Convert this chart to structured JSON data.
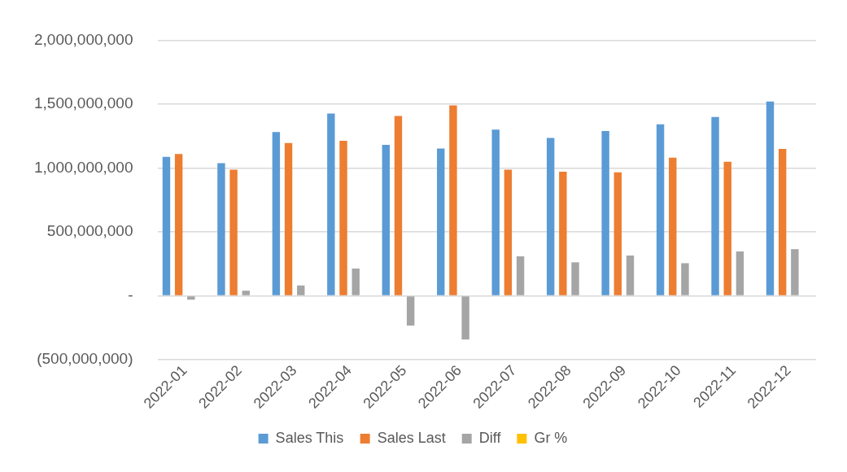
{
  "chart_data": {
    "type": "bar",
    "categories": [
      "2022-01",
      "2022-02",
      "2022-03",
      "2022-04",
      "2022-05",
      "2022-06",
      "2022-07",
      "2022-08",
      "2022-09",
      "2022-10",
      "2022-11",
      "2022-12"
    ],
    "series": [
      {
        "name": "Sales This",
        "color": "#5b9bd5",
        "values": [
          1087000000,
          1038000000,
          1282000000,
          1427000000,
          1181000000,
          1152000000,
          1300000000,
          1235000000,
          1289000000,
          1342000000,
          1400000000,
          1521000000
        ]
      },
      {
        "name": "Sales Last",
        "color": "#ed7d31",
        "values": [
          1110000000,
          987000000,
          1195000000,
          1213000000,
          1407000000,
          1490000000,
          987000000,
          971000000,
          966000000,
          1081000000,
          1049000000,
          1150000000
        ]
      },
      {
        "name": "Diff",
        "color": "#a5a5a5",
        "values": [
          -31000000,
          40000000,
          81000000,
          213000000,
          -233000000,
          -342000000,
          309000000,
          262000000,
          315000000,
          255000000,
          347000000,
          365000000
        ]
      },
      {
        "name": "Gr %",
        "color": "#ffc000",
        "values": [
          null,
          null,
          null,
          null,
          null,
          null,
          null,
          null,
          null,
          null,
          null,
          null
        ]
      }
    ],
    "ylim": [
      -500000000,
      2000000000
    ],
    "yticks": [
      {
        "value": -500000000,
        "label": "(500,000,000)"
      },
      {
        "value": 0,
        "label": "-"
      },
      {
        "value": 500000000,
        "label": "500,000,000"
      },
      {
        "value": 1000000000,
        "label": "1,000,000,000"
      },
      {
        "value": 1500000000,
        "label": "1,500,000,000"
      },
      {
        "value": 2000000000,
        "label": "2,000,000,000"
      }
    ],
    "grid": "y",
    "legend": "bottom"
  }
}
